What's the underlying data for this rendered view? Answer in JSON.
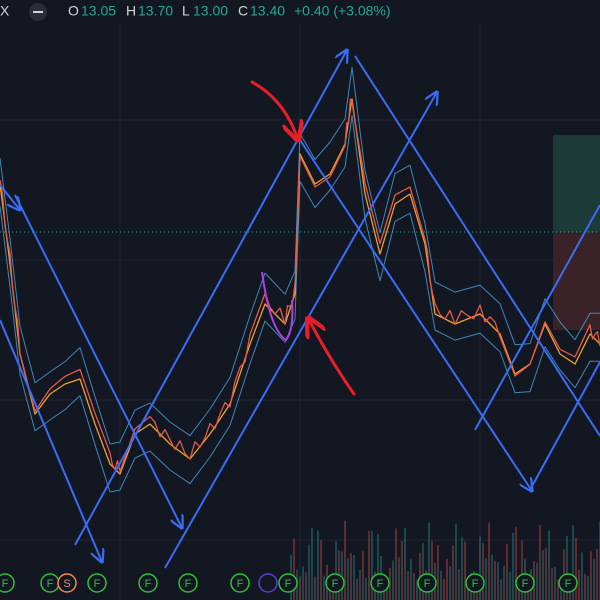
{
  "header": {
    "symbol": "X",
    "open_label": "O",
    "open": "13.05",
    "high_label": "H",
    "high": "13.70",
    "low_label": "L",
    "low": "13.00",
    "close_label": "C",
    "close": "13.40",
    "change": "+0.40 (+3.08%)"
  },
  "markers": [
    "F",
    "F",
    "S",
    "F",
    "F",
    "F",
    "F",
    "F",
    "F",
    "F",
    "F",
    "F",
    "F",
    "F"
  ]
}
